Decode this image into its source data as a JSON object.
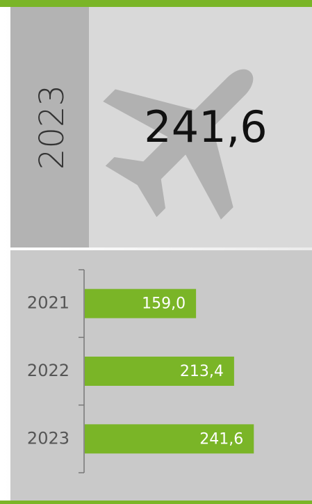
{
  "header": {
    "year": "2023",
    "value": "241,6"
  },
  "chart_data": {
    "type": "bar",
    "orientation": "horizontal",
    "categories": [
      "2021",
      "2022",
      "2023"
    ],
    "values": [
      159.0,
      213.4,
      241.6
    ],
    "value_labels": [
      "159,0",
      "213,4",
      "241,6"
    ],
    "color": "#7ab527"
  }
}
